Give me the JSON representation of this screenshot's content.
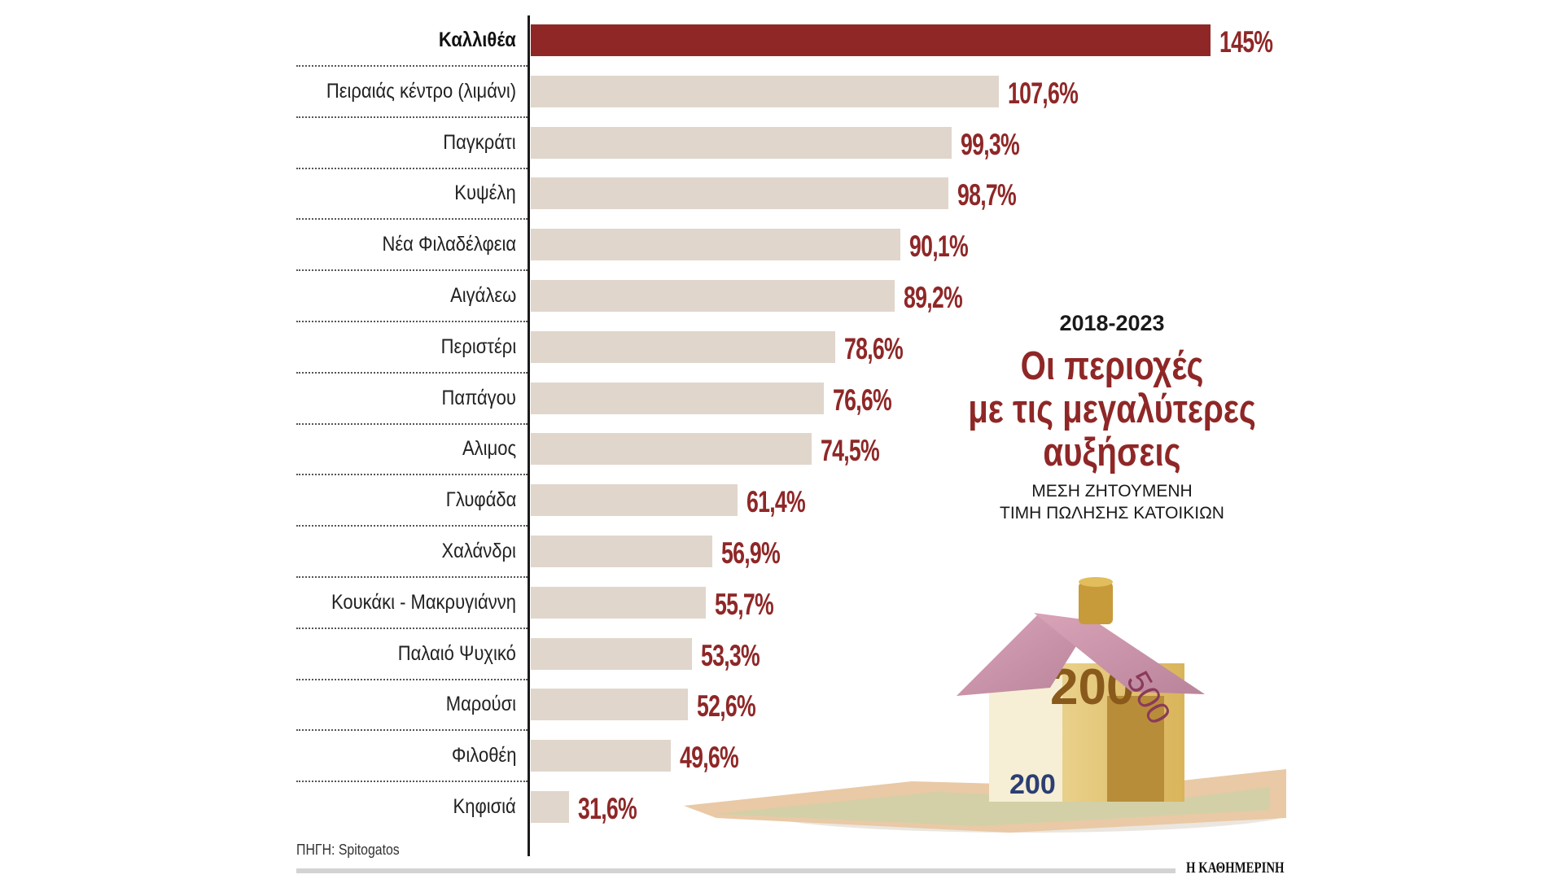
{
  "chart_data": {
    "type": "bar",
    "orientation": "horizontal",
    "period": "2018-2023",
    "title_lines": [
      "Οι περιοχές",
      "με τις μεγαλύτερες",
      "αυξήσεις"
    ],
    "subtitle_lines": [
      "ΜΕΣΗ ΖΗΤΟΥΜΕΝΗ",
      "ΤΙΜΗ ΠΩΛΗΣΗΣ ΚΑΤΟΙΚΙΩΝ"
    ],
    "unit": "%",
    "categories": [
      "Καλλιθέα",
      "Πειραιάς κέντρο (λιμάνι)",
      "Παγκράτι",
      "Κυψέλη",
      "Νέα Φιλαδέλφεια",
      "Αιγάλεω",
      "Περιστέρι",
      "Παπάγου",
      "Αλιμος",
      "Γλυφάδα",
      "Χαλάνδρι",
      "Κουκάκι - Μακρυγιάννη",
      "Παλαιό Ψυχικό",
      "Μαρούσι",
      "Φιλοθέη",
      "Κηφισιά"
    ],
    "values": [
      145,
      107.6,
      99.3,
      98.7,
      90.1,
      89.2,
      78.6,
      76.6,
      74.5,
      61.4,
      56.9,
      55.7,
      53.3,
      52.6,
      49.6,
      31.6
    ],
    "value_labels": [
      "145%",
      "107,6%",
      "99,3%",
      "98,7%",
      "90,1%",
      "89,2%",
      "78,6%",
      "76,6%",
      "74,5%",
      "61,4%",
      "56,9%",
      "55,7%",
      "53,3%",
      "52,6%",
      "49,6%",
      "31,6%"
    ],
    "highlighted_index": 0,
    "grid": false,
    "colors": {
      "highlight": "#8f2727",
      "bar": "#e0d6cc",
      "value_text": "#8f2727"
    }
  },
  "footer": {
    "source": "ΠΗΓΗ: Spitogatos",
    "brand": "Η ΚΑΘΗΜΕΡΙΝΗ"
  },
  "illustration": {
    "icon": "euro-banknote-house-icon",
    "note_labels": [
      "200",
      "500"
    ]
  }
}
